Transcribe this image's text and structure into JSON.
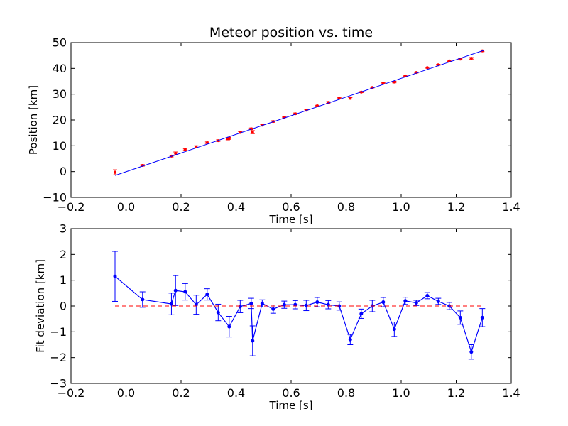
{
  "chart_data": [
    {
      "type": "scatter",
      "title": "Meteor position vs. time",
      "xlabel": "Time [s]",
      "ylabel": "Position [km]",
      "xlim": [
        -0.2,
        1.4
      ],
      "ylim": [
        -10,
        50
      ],
      "xticks": [
        "−0.2",
        "0.0",
        "0.2",
        "0.4",
        "0.6",
        "0.8",
        "1.0",
        "1.2",
        "1.4"
      ],
      "yticks": [
        "−10",
        "0",
        "10",
        "20",
        "30",
        "40",
        "50"
      ],
      "grid": false,
      "colors": {
        "points": "#ff0000",
        "fit_line": "#0000ff"
      },
      "series": [
        {
          "kind": "points_with_errorbars",
          "x": [
            -0.04,
            0.06,
            0.165,
            0.18,
            0.215,
            0.255,
            0.295,
            0.335,
            0.37,
            0.375,
            0.415,
            0.455,
            0.46,
            0.495,
            0.535,
            0.575,
            0.615,
            0.655,
            0.695,
            0.735,
            0.775,
            0.815,
            0.855,
            0.895,
            0.935,
            0.975,
            1.015,
            1.055,
            1.095,
            1.135,
            1.175,
            1.215,
            1.255,
            1.295
          ],
          "y": [
            -0.3,
            2.4,
            6.0,
            7.0,
            8.5,
            9.6,
            11.2,
            12.0,
            12.7,
            12.9,
            15.2,
            16.6,
            15.3,
            18.0,
            19.4,
            21.1,
            22.4,
            23.8,
            25.5,
            26.8,
            28.4,
            28.4,
            30.8,
            32.6,
            34.2,
            34.7,
            37.1,
            38.4,
            40.3,
            41.4,
            42.9,
            43.6,
            43.9,
            46.8
          ],
          "err": [
            1.0,
            0.3,
            0.3,
            0.6,
            0.3,
            0.4,
            0.3,
            0.3,
            0.4,
            0.4,
            0.3,
            0.3,
            0.6,
            0.3,
            0.3,
            0.2,
            0.3,
            0.3,
            0.2,
            0.3,
            0.2,
            0.3,
            0.2,
            0.2,
            0.2,
            0.3,
            0.2,
            0.2,
            0.2,
            0.2,
            0.2,
            0.2,
            0.3,
            0.3
          ]
        },
        {
          "kind": "fit_line",
          "x": [
            -0.04,
            1.3
          ],
          "y": [
            -1.5,
            47.0
          ]
        }
      ]
    },
    {
      "type": "line",
      "title": "",
      "xlabel": "Time [s]",
      "ylabel": "Fit deviation [km]",
      "xlim": [
        -0.2,
        1.4
      ],
      "ylim": [
        -3,
        3
      ],
      "xticks": [
        "−0.2",
        "0.0",
        "0.2",
        "0.4",
        "0.6",
        "0.8",
        "1.0",
        "1.2",
        "1.4"
      ],
      "yticks": [
        "−3",
        "−2",
        "−1",
        "0",
        "1",
        "2",
        "3"
      ],
      "grid": false,
      "colors": {
        "line": "#0000ff",
        "zero_line": "#ff0000"
      },
      "series": [
        {
          "kind": "line_with_errorbars",
          "x": [
            -0.04,
            0.06,
            0.165,
            0.18,
            0.215,
            0.255,
            0.295,
            0.335,
            0.375,
            0.415,
            0.455,
            0.46,
            0.495,
            0.535,
            0.575,
            0.615,
            0.655,
            0.695,
            0.735,
            0.775,
            0.815,
            0.855,
            0.895,
            0.935,
            0.975,
            1.015,
            1.055,
            1.095,
            1.135,
            1.175,
            1.215,
            1.255,
            1.295
          ],
          "y": [
            1.15,
            0.25,
            0.08,
            0.6,
            0.55,
            0.05,
            0.45,
            -0.25,
            -0.8,
            -0.02,
            0.1,
            -1.35,
            0.1,
            -0.12,
            0.05,
            0.05,
            0.02,
            0.15,
            0.05,
            0.0,
            -1.3,
            -0.3,
            0.0,
            0.15,
            -0.9,
            0.2,
            0.12,
            0.4,
            0.18,
            0.0,
            -0.45,
            -1.78,
            -0.45
          ],
          "err": [
            0.97,
            0.3,
            0.42,
            0.58,
            0.32,
            0.37,
            0.22,
            0.32,
            0.4,
            0.24,
            0.2,
            0.58,
            0.14,
            0.16,
            0.14,
            0.16,
            0.2,
            0.18,
            0.16,
            0.16,
            0.2,
            0.18,
            0.22,
            0.18,
            0.28,
            0.14,
            0.1,
            0.12,
            0.12,
            0.14,
            0.26,
            0.28,
            0.35
          ]
        },
        {
          "kind": "reference_line",
          "style": "dashed",
          "x": [
            -0.04,
            1.3
          ],
          "y": [
            0,
            0
          ]
        }
      ]
    }
  ]
}
